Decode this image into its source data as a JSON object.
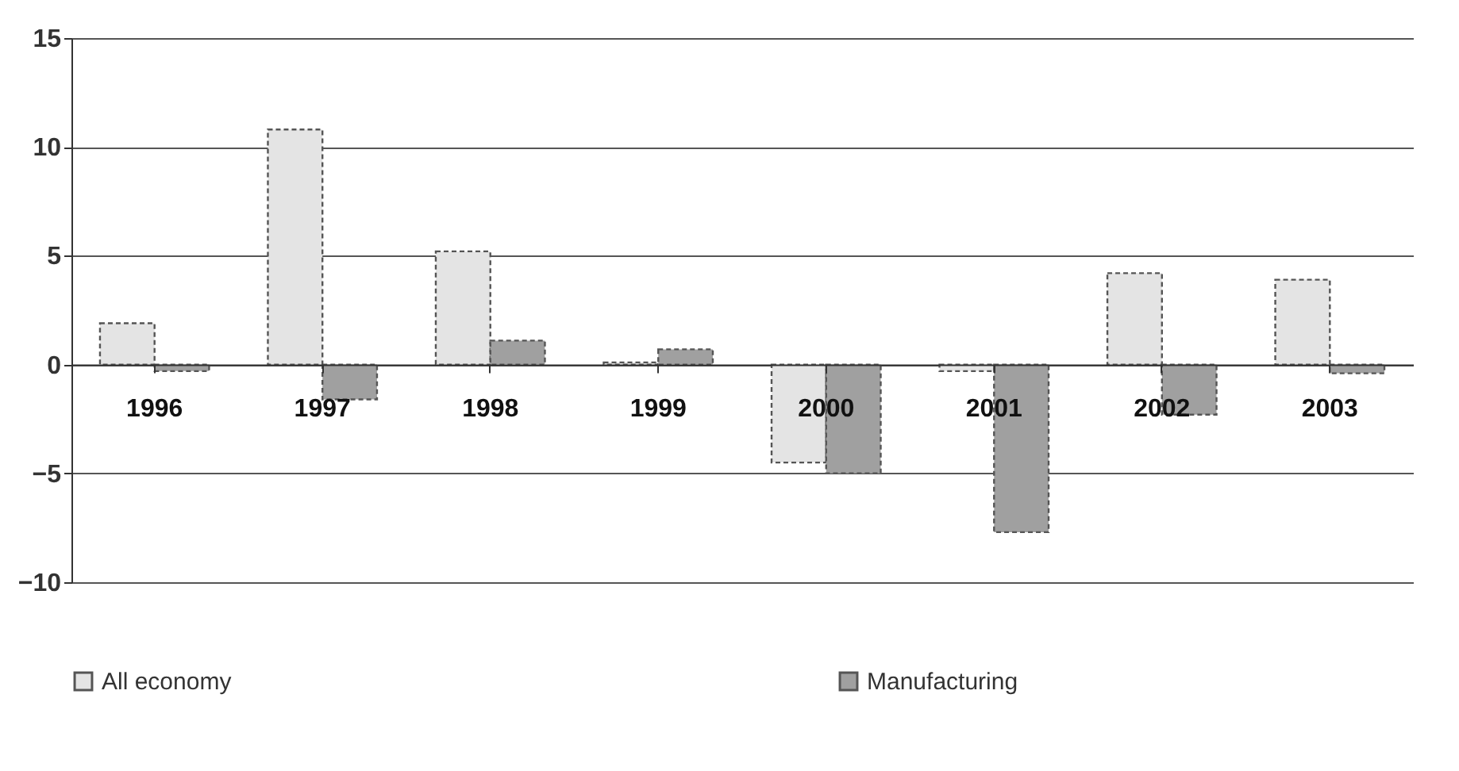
{
  "chart_data": {
    "type": "bar",
    "categories": [
      "1996",
      "1997",
      "1998",
      "1999",
      "2000",
      "2001",
      "2002",
      "2003"
    ],
    "series": [
      {
        "name": "All economy",
        "color": "#e4e4e4",
        "values": [
          1.9,
          10.8,
          5.2,
          0.1,
          -4.5,
          -0.3,
          4.2,
          3.9
        ]
      },
      {
        "name": "Manufacturing",
        "color": "#a0a0a0",
        "values": [
          -0.3,
          -1.6,
          1.1,
          0.7,
          -5.0,
          -7.7,
          -2.3,
          -0.4
        ]
      }
    ],
    "ylim": [
      -10,
      15
    ],
    "yticks": [
      -10,
      -5,
      0,
      5,
      10,
      15
    ],
    "grid": "y",
    "legend": "bottom"
  }
}
